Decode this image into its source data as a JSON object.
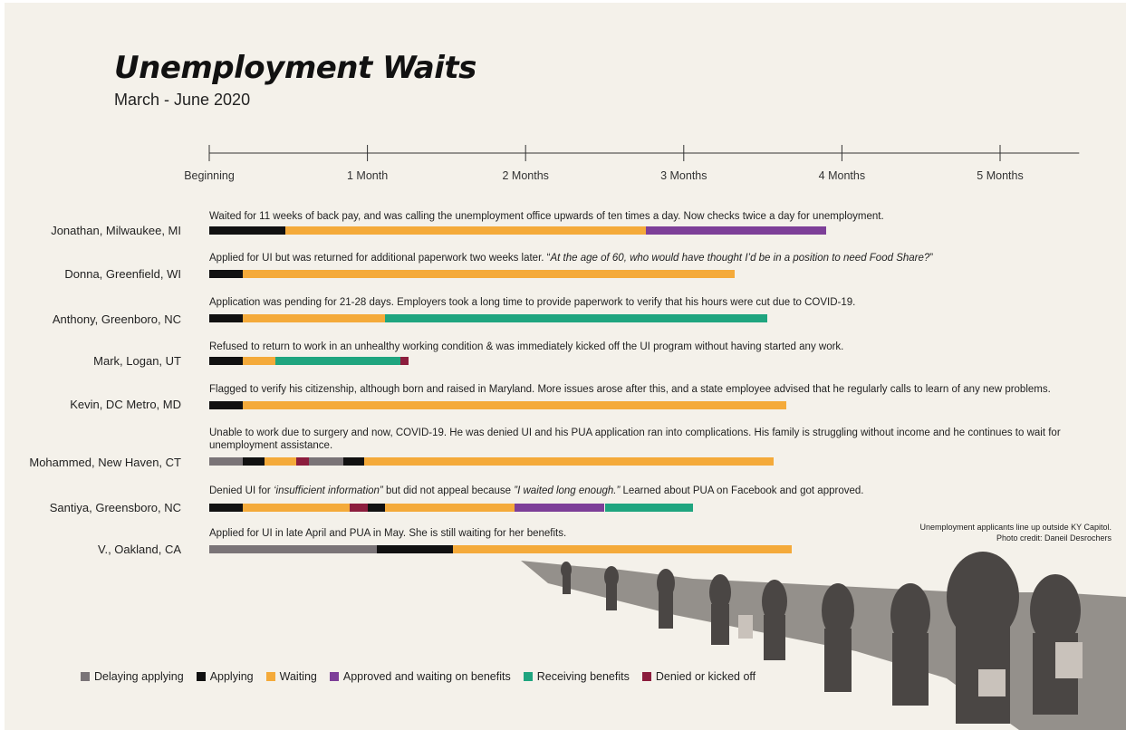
{
  "header": {
    "title": "Unemployment Waits",
    "subtitle": "March - June 2020"
  },
  "photo_caption": {
    "line1": "Unemployment applicants line up outside KY Capitol.",
    "line2": "Photo credit: Daneil Desrochers"
  },
  "chart_data": {
    "type": "bar",
    "orientation": "horizontal-stacked-timeline",
    "x_axis": {
      "unit": "months",
      "ticks": [
        {
          "value": 0,
          "label": "Beginning"
        },
        {
          "value": 1,
          "label": "1 Month"
        },
        {
          "value": 2,
          "label": "2 Months"
        },
        {
          "value": 3,
          "label": "3 Months"
        },
        {
          "value": 4,
          "label": "4 Months"
        },
        {
          "value": 5,
          "label": "5 Months"
        }
      ],
      "xlim": [
        0,
        5.5
      ]
    },
    "legend": [
      {
        "key": "delaying",
        "label": "Delaying applying",
        "color": "#7a7477"
      },
      {
        "key": "applying",
        "label": "Applying",
        "color": "#111111"
      },
      {
        "key": "waiting",
        "label": "Waiting",
        "color": "#f4aa3a"
      },
      {
        "key": "approved",
        "label": "Approved and waiting on benefits",
        "color": "#7d3f98"
      },
      {
        "key": "receiving",
        "label": "Receiving benefits",
        "color": "#1fa57f"
      },
      {
        "key": "denied",
        "label": "Denied or kicked off",
        "color": "#8c1d3d"
      }
    ],
    "rows": [
      {
        "name": "Jonathan, Milwaukee, MI",
        "description": "Waited for 11 weeks of back pay, and was calling the unemployment office upwards of ten  times a day. Now checks twice a day for unemployment.",
        "segments": [
          {
            "status": "applying",
            "start": 0,
            "end": 0.48
          },
          {
            "status": "waiting",
            "start": 0.48,
            "end": 2.76
          },
          {
            "status": "approved",
            "start": 2.76,
            "end": 3.9
          }
        ]
      },
      {
        "name": "Donna, Greenfield, WI",
        "description_parts": [
          {
            "text": "Applied for UI but was returned for additional paperwork two weeks later. “",
            "italic": false
          },
          {
            "text": "At the age of 60, who would have thought I’d be in a position to need Food Share?",
            "italic": true
          },
          {
            "text": "”",
            "italic": false
          }
        ],
        "segments": [
          {
            "status": "applying",
            "start": 0,
            "end": 0.21
          },
          {
            "status": "waiting",
            "start": 0.21,
            "end": 3.32
          }
        ]
      },
      {
        "name": "Anthony, Greenboro, NC",
        "description": "Application was pending for 21-28 days. Employers took a long time to provide paperwork to verify that his hours were cut due to COVID-19.",
        "segments": [
          {
            "status": "applying",
            "start": 0,
            "end": 0.21
          },
          {
            "status": "waiting",
            "start": 0.21,
            "end": 1.11
          },
          {
            "status": "receiving",
            "start": 1.11,
            "end": 3.53
          }
        ]
      },
      {
        "name": "Mark, Logan, UT",
        "description": "Refused to return to work in an unhealthy working condition & was immediately kicked off the UI program without having started any work.",
        "segments": [
          {
            "status": "applying",
            "start": 0,
            "end": 0.21
          },
          {
            "status": "waiting",
            "start": 0.21,
            "end": 0.42
          },
          {
            "status": "receiving",
            "start": 0.42,
            "end": 1.21
          },
          {
            "status": "denied",
            "start": 1.21,
            "end": 1.26
          }
        ]
      },
      {
        "name": "Kevin, DC Metro, MD",
        "description": "Flagged to verify his citizenship, although born and raised in Maryland. More issues arose after this, and a state employee advised that he regularly calls to learn of any new problems.",
        "segments": [
          {
            "status": "applying",
            "start": 0,
            "end": 0.21
          },
          {
            "status": "waiting",
            "start": 0.21,
            "end": 3.65
          }
        ]
      },
      {
        "name": "Mohammed, New Haven, CT",
        "description": "Unable to work due to surgery and now, COVID-19. He was denied UI and his PUA application ran into complications. His family is struggling without income and he continues to wait for unemployment assistance.",
        "segments": [
          {
            "status": "delaying",
            "start": 0,
            "end": 0.21
          },
          {
            "status": "applying",
            "start": 0.21,
            "end": 0.35
          },
          {
            "status": "waiting",
            "start": 0.35,
            "end": 0.55
          },
          {
            "status": "denied",
            "start": 0.55,
            "end": 0.63
          },
          {
            "status": "delaying",
            "start": 0.63,
            "end": 0.85
          },
          {
            "status": "applying",
            "start": 0.85,
            "end": 0.98
          },
          {
            "status": "waiting",
            "start": 0.98,
            "end": 3.57
          }
        ]
      },
      {
        "name": "Santiya, Greensboro, NC",
        "description_parts": [
          {
            "text": "Denied UI for ",
            "italic": false
          },
          {
            "text": "‘insufficient information”",
            "italic": true
          },
          {
            "text": " but did not appeal because ",
            "italic": false
          },
          {
            "text": "”I waited long enough.”",
            "italic": true
          },
          {
            "text": " Learned about PUA on Facebook and got approved.",
            "italic": false
          }
        ],
        "segments": [
          {
            "status": "applying",
            "start": 0,
            "end": 0.21
          },
          {
            "status": "waiting",
            "start": 0.21,
            "end": 0.89
          },
          {
            "status": "denied",
            "start": 0.89,
            "end": 1.0
          },
          {
            "status": "applying",
            "start": 1.0,
            "end": 1.11
          },
          {
            "status": "waiting",
            "start": 1.11,
            "end": 1.93
          },
          {
            "status": "approved",
            "start": 1.93,
            "end": 2.5
          },
          {
            "status": "receiving",
            "start": 2.5,
            "end": 3.06
          }
        ]
      },
      {
        "name": "V., Oakland, CA",
        "description": "Applied for UI in late April and PUA in May. She is still waiting for her benefits.",
        "segments": [
          {
            "status": "delaying",
            "start": 0,
            "end": 1.06
          },
          {
            "status": "applying",
            "start": 1.06,
            "end": 1.54
          },
          {
            "status": "waiting",
            "start": 1.54,
            "end": 3.68
          }
        ]
      }
    ]
  }
}
